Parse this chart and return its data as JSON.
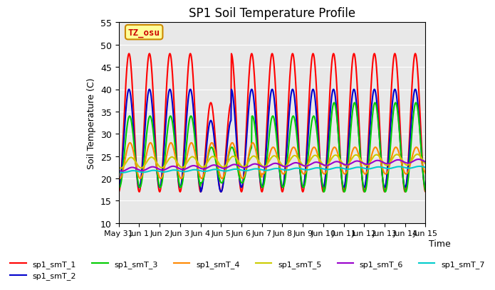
{
  "title": "SP1 Soil Temperature Profile",
  "xlabel": "Time",
  "ylabel": "Soil Temperature (C)",
  "ylim": [
    10,
    55
  ],
  "yticks": [
    10,
    15,
    20,
    25,
    30,
    35,
    40,
    45,
    50,
    55
  ],
  "xtick_labels": [
    "May 31",
    "Jun 1",
    "Jun 2",
    "Jun 3",
    "Jun 4",
    "Jun 5",
    "Jun 6",
    "Jun 7",
    "Jun 8",
    "Jun 9",
    "Jun 10",
    "Jun 11",
    "Jun 12",
    "Jun 13",
    "Jun 14",
    "Jun 15"
  ],
  "annotation_text": "TZ_osu",
  "annotation_color": "#cc0000",
  "annotation_bg": "#ffff99",
  "annotation_border": "#cc8800",
  "series_colors": [
    "#ff0000",
    "#0000cc",
    "#00cc00",
    "#ff8800",
    "#cccc00",
    "#9900cc",
    "#00cccc"
  ],
  "series_labels": [
    "sp1_smT_1",
    "sp1_smT_2",
    "sp1_smT_3",
    "sp1_smT_4",
    "sp1_smT_5",
    "sp1_smT_6",
    "sp1_smT_7"
  ],
  "bg_color": "#e8e8e8",
  "linewidth": 1.5,
  "n_days": 15,
  "points_per_day": 48
}
